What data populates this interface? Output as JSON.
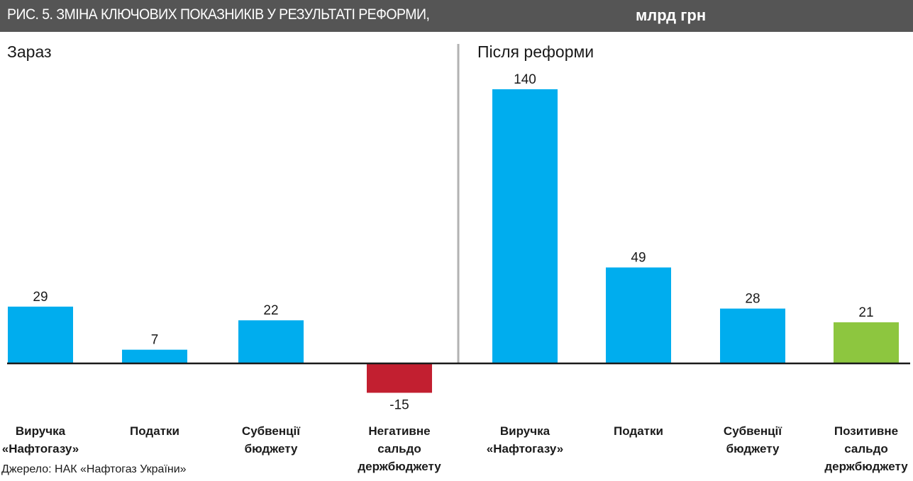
{
  "title": "РИС. 5. ЗМІНА КЛЮЧОВИХ ПОКАЗНИКІВ У РЕЗУЛЬТАТІ РЕФОРМИ,",
  "unit": "млрд грн",
  "source": "Джерело: НАК «Нафтогаз України»",
  "colors": {
    "title_bg": "#555555",
    "blue": "#00adee",
    "red": "#c21f30",
    "green": "#8dc63f",
    "axis": "#1a1a1a",
    "divider": "#b3b3b3"
  },
  "chart_data": [
    {
      "type": "bar",
      "panel": "Зараз",
      "categories": [
        [
          "Виручка",
          "«Нафтогазу»"
        ],
        [
          "Податки"
        ],
        [
          "Субвенції",
          "бюджету"
        ],
        [
          "Негативне",
          "сальдо",
          "держбюджету"
        ]
      ],
      "values": [
        29,
        7,
        22,
        -15
      ],
      "bar_colors": [
        "blue",
        "blue",
        "blue",
        "red"
      ],
      "value_labels": [
        "29",
        "7",
        "22",
        "-15"
      ],
      "baseline": 0
    },
    {
      "type": "bar",
      "panel": "Після реформи",
      "categories": [
        [
          "Виручка",
          "«Нафтогазу»"
        ],
        [
          "Податки"
        ],
        [
          "Субвенції",
          "бюджету"
        ],
        [
          "Позитивне",
          "сальдо",
          "держбюджету"
        ]
      ],
      "values": [
        140,
        49,
        28,
        21
      ],
      "bar_colors": [
        "blue",
        "blue",
        "blue",
        "green"
      ],
      "value_labels": [
        "140",
        "49",
        "28",
        "21"
      ],
      "baseline": 0
    }
  ]
}
